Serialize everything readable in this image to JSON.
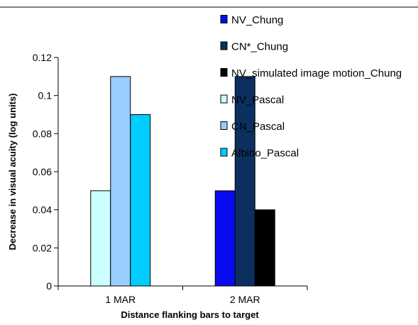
{
  "chart_data": {
    "type": "bar",
    "title": "",
    "xlabel": "Distance flanking bars to target",
    "ylabel": "Decrease in visual acuity (log units)",
    "ylim": [
      0,
      0.12
    ],
    "yticks": [
      "0",
      "0.02",
      "0.04",
      "0.06",
      "0.08",
      "0.1",
      "0.12"
    ],
    "categories": [
      "1 MAR",
      "2 MAR"
    ],
    "legend_position": "right",
    "grid": false,
    "series": [
      {
        "name": "NV_Chung",
        "color": "#0a0af0",
        "values": [
          null,
          0.05
        ]
      },
      {
        "name": "CN*_Chung",
        "color": "#0b3060",
        "values": [
          null,
          0.11
        ]
      },
      {
        "name": "NV_simulated image motion_Chung",
        "color": "#000000",
        "values": [
          null,
          0.04
        ]
      },
      {
        "name": "NV_Pascal",
        "color": "#ccffff",
        "values": [
          0.05,
          null
        ]
      },
      {
        "name": "CN_Pascal",
        "color": "#99ccff",
        "values": [
          0.11,
          null
        ]
      },
      {
        "name": "Albino_Pascal",
        "color": "#00ccff",
        "values": [
          0.09,
          null
        ]
      }
    ]
  }
}
